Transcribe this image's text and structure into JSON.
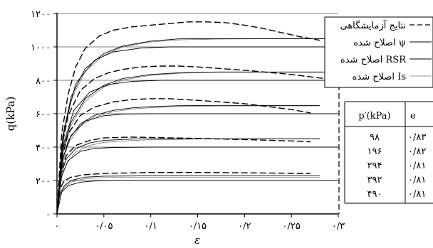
{
  "chart_data": {
    "type": "line",
    "xlabel": "ε",
    "ylabel": "q(kPa)",
    "xlim": [
      0,
      0.3
    ],
    "ylim": [
      0,
      1200
    ],
    "x_ticks": [
      0,
      0.05,
      0.1,
      0.15,
      0.2,
      0.25,
      0.3
    ],
    "x_tick_labels": [
      "۰",
      "۰/۰۵",
      "۰/۱",
      "۰/۱۵",
      "۰/۲",
      "۰/۲۵",
      "۰/۳"
    ],
    "y_ticks": [
      0,
      200,
      400,
      600,
      800,
      1000,
      1200
    ],
    "y_tick_labels": [
      "۰",
      "۲۰۰",
      "۴۰۰",
      "۶۰۰",
      "۸۰۰",
      "۱۰۰۰",
      "۱۲۰۰"
    ],
    "legend": {
      "position": "top-right",
      "entries": [
        {
          "label": "نتایج آزمایشگاهی",
          "style": "long-dash"
        },
        {
          "label": "اصلاح شده ψ",
          "style": "solid"
        },
        {
          "label": "اصلاح شده RSR",
          "style": "solid"
        },
        {
          "label": "اصلاح شده Is",
          "style": "thin-solid"
        }
      ]
    },
    "table": {
      "headers": [
        "p′(kPa)",
        "e"
      ],
      "rows": [
        [
          "۹۸",
          "۰/۸۳"
        ],
        [
          "۱۹۶",
          "۰/۸۲"
        ],
        [
          "۲۹۴",
          "۰/۸۱"
        ],
        [
          "۳۹۲",
          "۰/۸۱"
        ],
        [
          "۴۹۰",
          "۰/۸۱"
        ]
      ]
    },
    "series": [
      {
        "name": "نتایج آزمایشگاهی",
        "group": "p98",
        "style": "dashed",
        "x": [
          0,
          0.003,
          0.008,
          0.015,
          0.03,
          0.05,
          0.1,
          0.15,
          0.2,
          0.24,
          0.27
        ],
        "y": [
          0,
          150,
          200,
          220,
          235,
          242,
          248,
          248,
          246,
          244,
          242
        ]
      },
      {
        "name": "اصلاح شده ψ",
        "group": "p98",
        "style": "solid",
        "x": [
          0,
          0.003,
          0.008,
          0.015,
          0.03,
          0.05,
          0.1,
          0.15,
          0.2,
          0.25,
          0.28
        ],
        "y": [
          0,
          120,
          170,
          200,
          220,
          226,
          228,
          228,
          228,
          228,
          228
        ]
      },
      {
        "name": "اصلاح شده RSR",
        "group": "p98",
        "style": "solid",
        "x": [
          0,
          0.005,
          0.012,
          0.025,
          0.04,
          0.06,
          0.1,
          0.15,
          0.2,
          0.25,
          0.3
        ],
        "y": [
          0,
          130,
          170,
          190,
          197,
          200,
          200,
          200,
          200,
          200,
          200
        ]
      },
      {
        "name": "اصلاح شده Is",
        "group": "p98",
        "style": "thin",
        "x": [
          0,
          0.003,
          0.008,
          0.015,
          0.03,
          0.05,
          0.1,
          0.15,
          0.2,
          0.25,
          0.28
        ],
        "y": [
          0,
          110,
          160,
          190,
          210,
          218,
          220,
          220,
          220,
          220,
          220
        ]
      },
      {
        "name": "نتایج آزمایشگاهی",
        "group": "p196",
        "style": "dashed",
        "x": [
          0,
          0.004,
          0.01,
          0.02,
          0.035,
          0.05,
          0.08,
          0.1,
          0.15,
          0.2,
          0.25,
          0.27
        ],
        "y": [
          0,
          250,
          350,
          410,
          440,
          455,
          460,
          458,
          452,
          445,
          437,
          432
        ]
      },
      {
        "name": "اصلاح شده ψ",
        "group": "p196",
        "style": "solid",
        "x": [
          0,
          0.004,
          0.01,
          0.02,
          0.035,
          0.05,
          0.08,
          0.1,
          0.15,
          0.2,
          0.25,
          0.28
        ],
        "y": [
          0,
          230,
          330,
          390,
          425,
          440,
          448,
          450,
          450,
          450,
          450,
          450
        ]
      },
      {
        "name": "اصلاح شده RSR",
        "group": "p196",
        "style": "solid",
        "x": [
          0,
          0.005,
          0.012,
          0.025,
          0.04,
          0.06,
          0.1,
          0.15,
          0.2,
          0.25,
          0.3
        ],
        "y": [
          0,
          230,
          320,
          375,
          392,
          398,
          400,
          400,
          400,
          400,
          400
        ]
      },
      {
        "name": "اصلاح شده Is",
        "group": "p196",
        "style": "thin",
        "x": [
          0,
          0.004,
          0.01,
          0.02,
          0.035,
          0.05,
          0.08,
          0.1,
          0.15,
          0.2,
          0.25,
          0.28
        ],
        "y": [
          0,
          200,
          300,
          370,
          410,
          428,
          440,
          444,
          448,
          448,
          448,
          448
        ]
      },
      {
        "name": "نتایج آزمایشگاهی",
        "group": "p294",
        "style": "dashed",
        "x": [
          0,
          0.005,
          0.012,
          0.025,
          0.04,
          0.06,
          0.08,
          0.1,
          0.12,
          0.15,
          0.2,
          0.25,
          0.27
        ],
        "y": [
          0,
          330,
          480,
          590,
          640,
          670,
          685,
          690,
          690,
          680,
          660,
          625,
          605
        ]
      },
      {
        "name": "اصلاح شده ψ",
        "group": "p294",
        "style": "solid",
        "x": [
          0,
          0.005,
          0.012,
          0.025,
          0.04,
          0.06,
          0.08,
          0.1,
          0.13,
          0.17,
          0.22,
          0.28
        ],
        "y": [
          0,
          300,
          440,
          540,
          590,
          620,
          635,
          642,
          648,
          650,
          650,
          650
        ]
      },
      {
        "name": "اصلاح شده RSR",
        "group": "p294",
        "style": "solid",
        "x": [
          0,
          0.006,
          0.015,
          0.03,
          0.05,
          0.07,
          0.1,
          0.15,
          0.2,
          0.25,
          0.3
        ],
        "y": [
          0,
          330,
          470,
          555,
          588,
          597,
          600,
          600,
          600,
          600,
          600
        ]
      },
      {
        "name": "اصلاح شده Is",
        "group": "p294",
        "style": "thin",
        "x": [
          0,
          0.005,
          0.012,
          0.025,
          0.04,
          0.06,
          0.08,
          0.1,
          0.13,
          0.17,
          0.22,
          0.28
        ],
        "y": [
          0,
          280,
          420,
          525,
          580,
          612,
          628,
          636,
          643,
          646,
          647,
          647
        ]
      },
      {
        "name": "نتایج آزمایشگاهی",
        "group": "p392",
        "style": "dashed",
        "x": [
          0,
          0.005,
          0.012,
          0.025,
          0.04,
          0.055,
          0.07,
          0.09,
          0.11,
          0.13,
          0.15,
          0.2,
          0.25,
          0.3
        ],
        "y": [
          0,
          400,
          590,
          740,
          810,
          845,
          865,
          880,
          885,
          885,
          880,
          860,
          835,
          800
        ]
      },
      {
        "name": "اصلاح شده ψ",
        "group": "p392",
        "style": "solid",
        "x": [
          0,
          0.006,
          0.015,
          0.03,
          0.05,
          0.07,
          0.1,
          0.13,
          0.17,
          0.22,
          0.28,
          0.3
        ],
        "y": [
          0,
          380,
          550,
          690,
          770,
          810,
          835,
          845,
          850,
          850,
          850,
          850
        ]
      },
      {
        "name": "اصلاح شده RSR",
        "group": "p392",
        "style": "solid",
        "x": [
          0,
          0.007,
          0.018,
          0.035,
          0.055,
          0.08,
          0.11,
          0.15,
          0.2,
          0.25,
          0.3
        ],
        "y": [
          0,
          420,
          620,
          730,
          775,
          793,
          800,
          800,
          800,
          800,
          800
        ]
      },
      {
        "name": "اصلاح شده Is",
        "group": "p392",
        "style": "thin",
        "x": [
          0,
          0.006,
          0.015,
          0.03,
          0.05,
          0.07,
          0.1,
          0.13,
          0.17,
          0.22,
          0.28,
          0.3
        ],
        "y": [
          0,
          360,
          530,
          675,
          760,
          802,
          830,
          842,
          848,
          849,
          849,
          849
        ]
      },
      {
        "name": "نتایج آزمایشگاهی",
        "group": "p490",
        "style": "dashed",
        "x": [
          0,
          0.005,
          0.012,
          0.02,
          0.03,
          0.045,
          0.06,
          0.08,
          0.1,
          0.12,
          0.14,
          0.16,
          0.18,
          0.2,
          0.22,
          0.24,
          0.26,
          0.28
        ],
        "y": [
          0,
          480,
          720,
          880,
          990,
          1065,
          1100,
          1120,
          1130,
          1140,
          1150,
          1150,
          1145,
          1130,
          1110,
          1085,
          1060,
          1040
        ]
      },
      {
        "name": "اصلاح شده ψ",
        "group": "p490",
        "style": "solid",
        "x": [
          0,
          0.006,
          0.015,
          0.03,
          0.05,
          0.07,
          0.1,
          0.13,
          0.17,
          0.22,
          0.26,
          0.3
        ],
        "y": [
          0,
          460,
          700,
          870,
          960,
          1005,
          1035,
          1048,
          1050,
          1050,
          1050,
          1050
        ]
      },
      {
        "name": "اصلاح شده RSR",
        "group": "p490",
        "style": "solid",
        "x": [
          0,
          0.008,
          0.02,
          0.04,
          0.06,
          0.09,
          0.12,
          0.15,
          0.2,
          0.25,
          0.3
        ],
        "y": [
          0,
          520,
          780,
          920,
          970,
          993,
          1000,
          1000,
          1000,
          1000,
          1000
        ]
      },
      {
        "name": "اصلاح شده Is",
        "group": "p490",
        "style": "thin",
        "x": [
          0,
          0.006,
          0.015,
          0.03,
          0.05,
          0.07,
          0.1,
          0.13,
          0.17,
          0.22,
          0.26,
          0.3
        ],
        "y": [
          0,
          440,
          680,
          855,
          950,
          1000,
          1030,
          1042,
          1047,
          1048,
          1048,
          1048
        ]
      }
    ]
  }
}
